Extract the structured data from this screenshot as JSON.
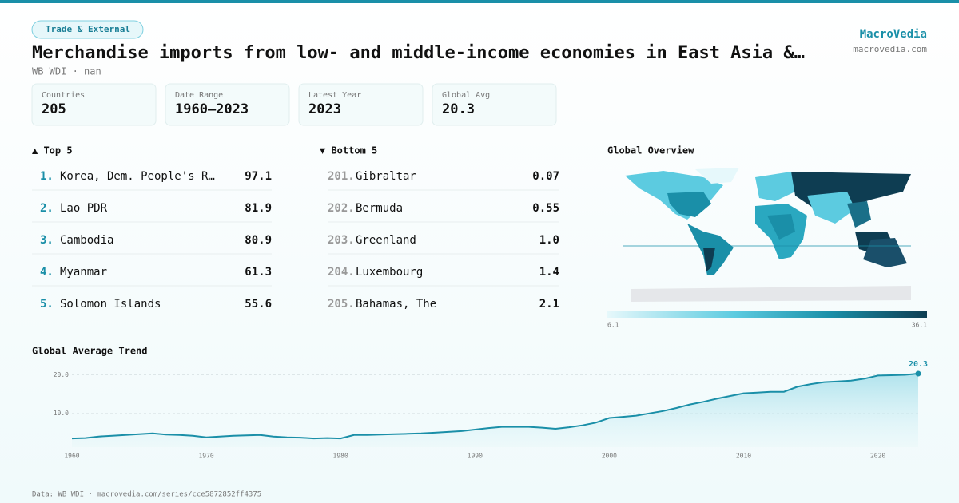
{
  "header": {
    "badge": "Trade & External",
    "title": "Merchandise imports from low- and middle-income economies in East Asia &…",
    "subtitle": "WB WDI · nan",
    "brand": "MacroVedia",
    "site": "macrovedia.com"
  },
  "stats": [
    {
      "label": "Countries",
      "value": 205
    },
    {
      "label": "Date Range",
      "value": "1960–2023"
    },
    {
      "label": "Latest Year",
      "value": 2023
    },
    {
      "label": "Global Avg",
      "value": 20.3
    }
  ],
  "top": {
    "title": "▲ Top 5",
    "items": [
      {
        "rank": "1.",
        "name": "Korea, Dem. People's R…",
        "value": "97.1"
      },
      {
        "rank": "2.",
        "name": "Lao PDR",
        "value": "81.9"
      },
      {
        "rank": "3.",
        "name": "Cambodia",
        "value": "80.9"
      },
      {
        "rank": "4.",
        "name": "Myanmar",
        "value": "61.3"
      },
      {
        "rank": "5.",
        "name": "Solomon Islands",
        "value": "55.6"
      }
    ]
  },
  "bottom": {
    "title": "▼ Bottom 5",
    "items": [
      {
        "rank": "201.",
        "name": "Gibraltar",
        "value": "0.07"
      },
      {
        "rank": "202.",
        "name": "Bermuda",
        "value": "0.55"
      },
      {
        "rank": "203.",
        "name": "Greenland",
        "value": "1.0"
      },
      {
        "rank": "204.",
        "name": "Luxembourg",
        "value": "1.4"
      },
      {
        "rank": "205.",
        "name": "Bahamas, The",
        "value": "2.1"
      }
    ]
  },
  "map": {
    "title": "Global Overview",
    "scale_min": 6.1,
    "scale_max": 36.1
  },
  "chart_data": {
    "type": "line",
    "title": "Global Average Trend",
    "x": [
      1960,
      1961,
      1962,
      1963,
      1964,
      1965,
      1966,
      1967,
      1968,
      1969,
      1970,
      1971,
      1972,
      1973,
      1974,
      1975,
      1976,
      1977,
      1978,
      1979,
      1980,
      1981,
      1982,
      1983,
      1984,
      1985,
      1986,
      1987,
      1988,
      1989,
      1990,
      1991,
      1992,
      1993,
      1994,
      1995,
      1996,
      1997,
      1998,
      1999,
      2000,
      2001,
      2002,
      2003,
      2004,
      2005,
      2006,
      2007,
      2008,
      2009,
      2010,
      2011,
      2012,
      2013,
      2014,
      2015,
      2016,
      2017,
      2018,
      2019,
      2020,
      2021,
      2022,
      2023
    ],
    "series": [
      {
        "name": "Global average",
        "color": "#1a8fa8",
        "values": [
          3.5,
          3.6,
          4.0,
          4.2,
          4.4,
          4.6,
          4.8,
          4.5,
          4.4,
          4.2,
          3.8,
          4.0,
          4.2,
          4.3,
          4.4,
          4.0,
          3.8,
          3.7,
          3.5,
          3.6,
          3.5,
          4.4,
          4.4,
          4.5,
          4.6,
          4.7,
          4.8,
          5.0,
          5.2,
          5.4,
          5.8,
          6.2,
          6.5,
          6.5,
          6.5,
          6.3,
          6.0,
          6.4,
          6.9,
          7.6,
          8.8,
          9.1,
          9.4,
          10.0,
          10.6,
          11.4,
          12.3,
          13.0,
          13.8,
          14.5,
          15.2,
          15.4,
          15.6,
          15.6,
          16.9,
          17.6,
          18.1,
          18.3,
          18.5,
          19.0,
          19.8,
          19.9,
          20.0,
          20.3
        ]
      }
    ],
    "xlim": [
      1960,
      2023
    ],
    "ylim": [
      0,
      23
    ],
    "xticks": [
      1960,
      1970,
      1980,
      1990,
      2000,
      2010,
      2020
    ],
    "yticks": [
      {
        "value": 10,
        "label": "10.0"
      },
      {
        "value": 20,
        "label": "20.0"
      }
    ],
    "grid": true
  },
  "footer": "Data: WB WDI · macrovedia.com/series/cce5872852ff4375"
}
